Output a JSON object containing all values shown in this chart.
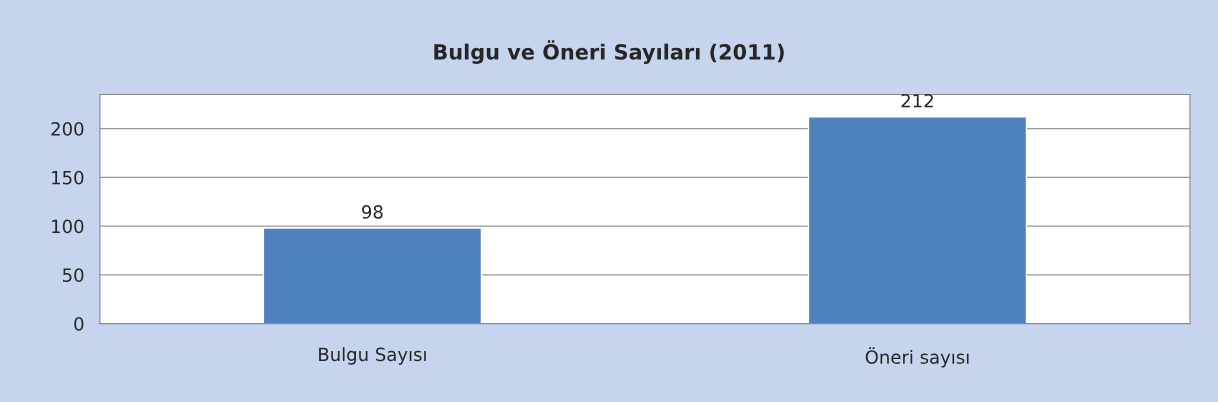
{
  "chart_data": {
    "type": "bar",
    "title": "Bulgu ve Öneri Sayıları (2011)",
    "categories": [
      "Bulgu Sayısı",
      "Öneri sayısı"
    ],
    "values": [
      98,
      212
    ],
    "data_labels": true,
    "color": "#4f81bd",
    "ylim": [
      0,
      235
    ],
    "yticks": [
      0,
      50,
      100,
      150,
      200
    ],
    "grid": "y"
  }
}
